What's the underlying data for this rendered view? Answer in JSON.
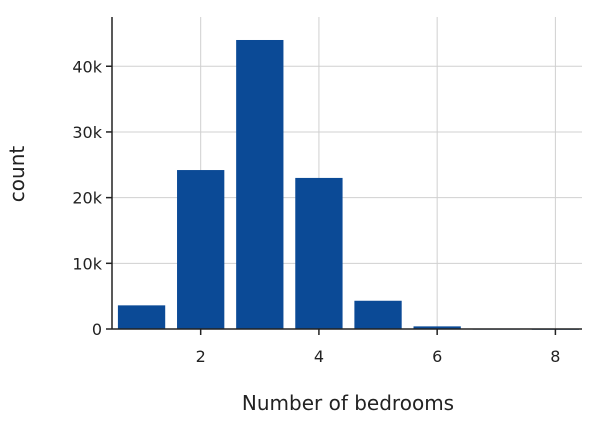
{
  "chart_data": {
    "type": "bar",
    "x": [
      1,
      2,
      3,
      4,
      5,
      6,
      7,
      8
    ],
    "values": [
      3600,
      24200,
      44000,
      23000,
      4300,
      400,
      30,
      10
    ],
    "xlabel": "Number of bedrooms",
    "ylabel": "count",
    "xlim": [
      0.5,
      8.45
    ],
    "ylim": [
      0,
      47500
    ],
    "x_ticks": [
      2,
      4,
      6,
      8
    ],
    "x_tick_labels": [
      "2",
      "4",
      "6",
      "8"
    ],
    "y_ticks": [
      0,
      10000,
      20000,
      30000,
      40000
    ],
    "y_tick_labels": [
      "0",
      "10k",
      "20k",
      "30k",
      "40k"
    ],
    "grid": true,
    "bar_color": "#0b4a96",
    "grid_color": "#d0d0d0",
    "axis_color": "#222222"
  }
}
